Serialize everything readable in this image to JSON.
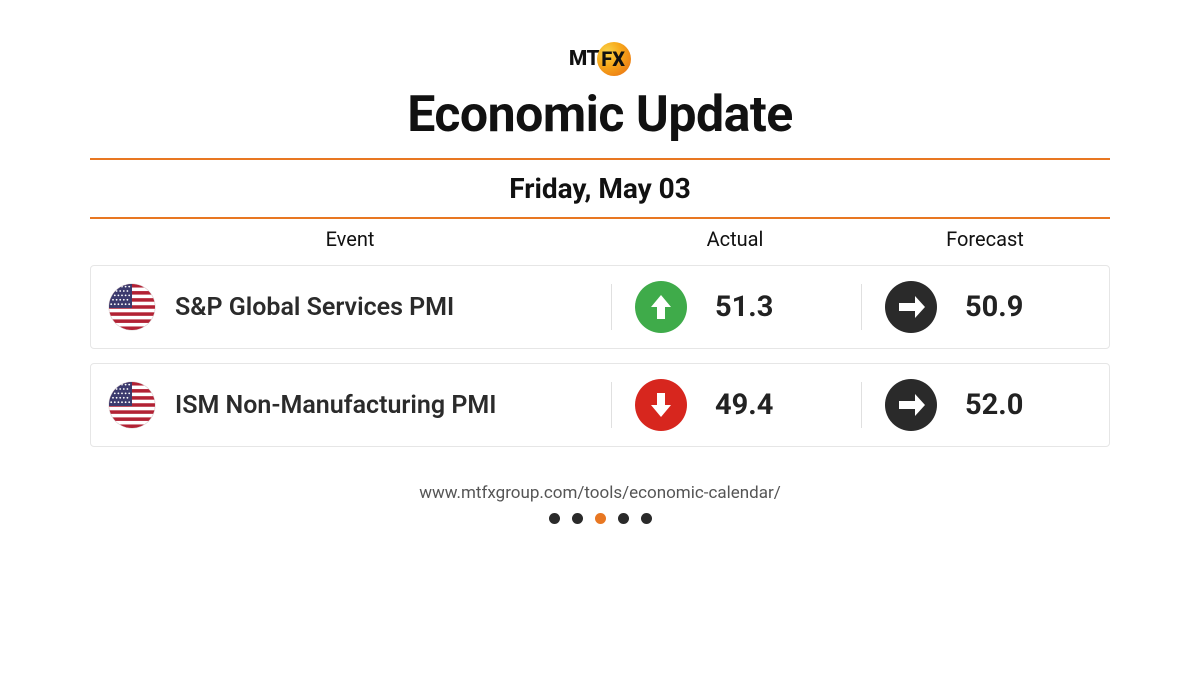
{
  "brand": {
    "pre": "MT",
    "inCircle": "FX"
  },
  "title": "Economic Update",
  "date": "Friday, May 03",
  "colors": {
    "accent": "#e87722",
    "up": "#3fab4a",
    "down": "#d7261e",
    "neutral": "#2a2a2a",
    "border": "#e6e6e6",
    "dotInactive": "#2a2a2a"
  },
  "columns": {
    "event": "Event",
    "actual": "Actual",
    "forecast": "Forecast"
  },
  "rows": [
    {
      "country": "US",
      "event": "S&P Global Services PMI",
      "actual": {
        "dir": "up",
        "value": "51.3"
      },
      "forecast": {
        "dir": "flat",
        "value": "50.9"
      }
    },
    {
      "country": "US",
      "event": "ISM Non-Manufacturing PMI",
      "actual": {
        "dir": "down",
        "value": "49.4"
      },
      "forecast": {
        "dir": "flat",
        "value": "52.0"
      }
    }
  ],
  "footer": {
    "url": "www.mtfxgroup.com/tools/economic-calendar/"
  },
  "pagination": {
    "total": 5,
    "active": 2
  }
}
